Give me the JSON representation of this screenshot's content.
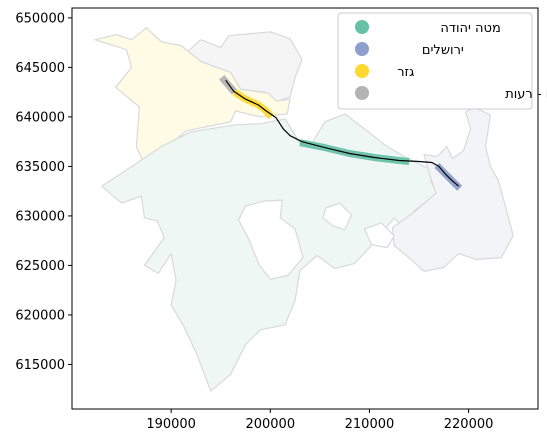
{
  "chart_data": {
    "type": "map",
    "crs_units": "projected (x/y)",
    "xlim": [
      180000,
      227000
    ],
    "ylim": [
      610500,
      651000
    ],
    "x_ticks": [
      {
        "value": 190000,
        "label": "190000"
      },
      {
        "value": 200000,
        "label": "200000"
      },
      {
        "value": 210000,
        "label": "210000"
      },
      {
        "value": 220000,
        "label": "220000"
      }
    ],
    "y_ticks": [
      {
        "value": 615000,
        "label": "615000"
      },
      {
        "value": 620000,
        "label": "620000"
      },
      {
        "value": 625000,
        "label": "625000"
      },
      {
        "value": 630000,
        "label": "630000"
      },
      {
        "value": 635000,
        "label": "635000"
      },
      {
        "value": 640000,
        "label": "640000"
      },
      {
        "value": 645000,
        "label": "645000"
      },
      {
        "value": 650000,
        "label": "650000"
      }
    ],
    "legend": {
      "placement": "top-right",
      "entries": [
        {
          "label": "מטה יהודה",
          "color": "#66c2a5"
        },
        {
          "label": "ירושלים",
          "color": "#8da0cb"
        },
        {
          "label": "גזר",
          "color": "#ffd92f"
        },
        {
          "label": "מודיעין - מכבים - רעות",
          "color": "#b3b3b3"
        }
      ]
    },
    "regions": [
      {
        "name": "מודיעין - מכבים - רעות",
        "fill": "#f5f5f5",
        "polygon": [
          [
            190800,
            645800
          ],
          [
            193000,
            647800
          ],
          [
            195000,
            647000
          ],
          [
            195800,
            648200
          ],
          [
            200000,
            648600
          ],
          [
            202000,
            647900
          ],
          [
            203200,
            645800
          ],
          [
            202500,
            644000
          ],
          [
            202000,
            642000
          ],
          [
            200500,
            641500
          ],
          [
            199500,
            642500
          ],
          [
            197000,
            642800
          ],
          [
            196000,
            644500
          ],
          [
            193000,
            645500
          ]
        ]
      },
      {
        "name": "גזר",
        "fill": "#fffbe5",
        "polygon": [
          [
            182300,
            647800
          ],
          [
            184500,
            648300
          ],
          [
            186000,
            647800
          ],
          [
            187500,
            649000
          ],
          [
            189000,
            647600
          ],
          [
            191000,
            647200
          ],
          [
            193000,
            645600
          ],
          [
            196000,
            644500
          ],
          [
            197000,
            642800
          ],
          [
            199800,
            642400
          ],
          [
            200600,
            641600
          ],
          [
            202000,
            641800
          ],
          [
            201700,
            640300
          ],
          [
            199000,
            640000
          ],
          [
            196500,
            640600
          ],
          [
            196000,
            639500
          ],
          [
            191500,
            638600
          ],
          [
            188500,
            636000
          ],
          [
            187300,
            635200
          ],
          [
            186500,
            637000
          ],
          [
            186800,
            641000
          ],
          [
            184400,
            643000
          ],
          [
            186000,
            645000
          ],
          [
            185500,
            646800
          ]
        ]
      },
      {
        "name": "מטה יהודה",
        "fill": "#eff7f4",
        "polygon": [
          [
            186500,
            635300
          ],
          [
            183000,
            633000
          ],
          [
            185000,
            631300
          ],
          [
            187000,
            632000
          ],
          [
            187300,
            629800
          ],
          [
            188600,
            629500
          ],
          [
            189300,
            627800
          ],
          [
            187300,
            625000
          ],
          [
            188700,
            624200
          ],
          [
            190000,
            626200
          ],
          [
            190500,
            623500
          ],
          [
            190000,
            621000
          ],
          [
            191200,
            619000
          ],
          [
            192600,
            616000
          ],
          [
            194000,
            612300
          ],
          [
            196000,
            614000
          ],
          [
            197500,
            617000
          ],
          [
            199000,
            618500
          ],
          [
            201500,
            619000
          ],
          [
            202500,
            621500
          ],
          [
            203000,
            624500
          ],
          [
            204700,
            626000
          ],
          [
            206500,
            624700
          ],
          [
            208500,
            625200
          ],
          [
            210000,
            626800
          ],
          [
            211000,
            628000
          ],
          [
            212500,
            629800
          ],
          [
            214300,
            628000
          ],
          [
            214500,
            630500
          ],
          [
            216800,
            632300
          ],
          [
            216200,
            633500
          ],
          [
            216500,
            634500
          ],
          [
            213500,
            636000
          ],
          [
            211500,
            637200
          ],
          [
            209500,
            638800
          ],
          [
            207500,
            640300
          ],
          [
            205500,
            639500
          ],
          [
            204000,
            637000
          ],
          [
            203000,
            637300
          ],
          [
            201500,
            639800
          ],
          [
            199000,
            639300
          ],
          [
            196500,
            639200
          ],
          [
            192000,
            638500
          ],
          [
            189000,
            637000
          ]
        ]
      },
      {
        "name": "ירושלים",
        "fill": "#f3f4f8",
        "polygon": [
          [
            215500,
            636200
          ],
          [
            216800,
            636000
          ],
          [
            217800,
            637000
          ],
          [
            218400,
            635800
          ],
          [
            219500,
            636600
          ],
          [
            220200,
            638800
          ],
          [
            219700,
            640500
          ],
          [
            220500,
            641000
          ],
          [
            222200,
            640200
          ],
          [
            221700,
            637000
          ],
          [
            222200,
            635000
          ],
          [
            223000,
            633600
          ],
          [
            223700,
            631000
          ],
          [
            224500,
            628000
          ],
          [
            223300,
            625800
          ],
          [
            220800,
            625600
          ],
          [
            219000,
            626200
          ],
          [
            217500,
            624800
          ],
          [
            215500,
            624400
          ],
          [
            214200,
            625600
          ],
          [
            212500,
            627000
          ],
          [
            212300,
            628800
          ],
          [
            214400,
            630300
          ],
          [
            216700,
            632300
          ],
          [
            216000,
            634400
          ]
        ]
      }
    ],
    "holes": [
      [
        [
          199400,
          631500
        ],
        [
          201200,
          631600
        ],
        [
          201000,
          629800
        ],
        [
          202500,
          628700
        ],
        [
          203300,
          625800
        ],
        [
          201800,
          624000
        ],
        [
          200000,
          623600
        ],
        [
          198900,
          625000
        ],
        [
          197800,
          627700
        ],
        [
          196800,
          629600
        ],
        [
          197500,
          631000
        ]
      ],
      [
        [
          205600,
          630800
        ],
        [
          207000,
          631300
        ],
        [
          208200,
          630100
        ],
        [
          207500,
          628600
        ],
        [
          206300,
          629000
        ],
        [
          205300,
          629800
        ]
      ],
      [
        [
          209500,
          628700
        ],
        [
          211200,
          629300
        ],
        [
          212500,
          628000
        ],
        [
          211800,
          626800
        ],
        [
          210200,
          627100
        ]
      ]
    ],
    "route": [
      [
        195500,
        643700
      ],
      [
        196300,
        642600
      ],
      [
        197500,
        641800
      ],
      [
        198800,
        641200
      ],
      [
        199600,
        640600
      ],
      [
        200600,
        639900
      ],
      [
        201300,
        638800
      ],
      [
        202000,
        638100
      ],
      [
        203200,
        637500
      ],
      [
        205500,
        636900
      ],
      [
        208000,
        636300
      ],
      [
        210500,
        635900
      ],
      [
        213000,
        635600
      ],
      [
        215000,
        635500
      ],
      [
        216300,
        635400
      ],
      [
        217000,
        635000
      ],
      [
        217600,
        634300
      ],
      [
        218300,
        633600
      ],
      [
        219000,
        633000
      ]
    ],
    "highlighted_segments": [
      {
        "region": "מודיעין - מכבים - רעות",
        "color": "#b3b3b3",
        "path": [
          [
            195100,
            644000
          ],
          [
            196400,
            642500
          ]
        ]
      },
      {
        "region": "גזר",
        "color": "#ffd92f",
        "path": [
          [
            196400,
            642500
          ],
          [
            197500,
            641800
          ],
          [
            198800,
            641200
          ],
          [
            199600,
            640600
          ],
          [
            200100,
            640000
          ]
        ]
      },
      {
        "region": "מטה יהודה",
        "color": "#66c2a5",
        "path": [
          [
            203000,
            637400
          ],
          [
            205500,
            636900
          ],
          [
            208000,
            636300
          ],
          [
            210500,
            635900
          ],
          [
            213000,
            635600
          ],
          [
            214000,
            635500
          ]
        ]
      },
      {
        "region": "ירושלים",
        "color": "#8da0cb",
        "path": [
          [
            216800,
            635100
          ],
          [
            217600,
            634300
          ],
          [
            218300,
            633600
          ],
          [
            219100,
            632800
          ]
        ]
      }
    ]
  }
}
